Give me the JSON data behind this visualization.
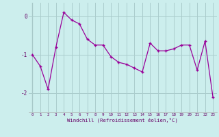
{
  "x": [
    0,
    1,
    2,
    3,
    4,
    5,
    6,
    7,
    8,
    9,
    10,
    11,
    12,
    13,
    14,
    15,
    16,
    17,
    18,
    19,
    20,
    21,
    22,
    23
  ],
  "y": [
    -1.0,
    -1.3,
    -1.9,
    -0.8,
    0.1,
    -0.1,
    -0.2,
    -0.6,
    -0.75,
    -0.75,
    -1.05,
    -1.2,
    -1.25,
    -1.35,
    -1.45,
    -0.7,
    -0.9,
    -0.9,
    -0.85,
    -0.75,
    -0.75,
    -1.4,
    -0.65,
    -2.1
  ],
  "line_color": "#990099",
  "marker": "+",
  "background_color": "#cceeed",
  "grid_color": "#aacccc",
  "xlabel": "Windchill (Refroidissement éolien,°C)",
  "xlabel_color": "#660066",
  "tick_color": "#660066",
  "ylim": [
    -2.5,
    0.35
  ],
  "yticks": [
    -2,
    -1,
    0
  ],
  "xticks": [
    0,
    1,
    2,
    3,
    4,
    5,
    6,
    7,
    8,
    9,
    10,
    11,
    12,
    13,
    14,
    15,
    16,
    17,
    18,
    19,
    20,
    21,
    22,
    23
  ]
}
